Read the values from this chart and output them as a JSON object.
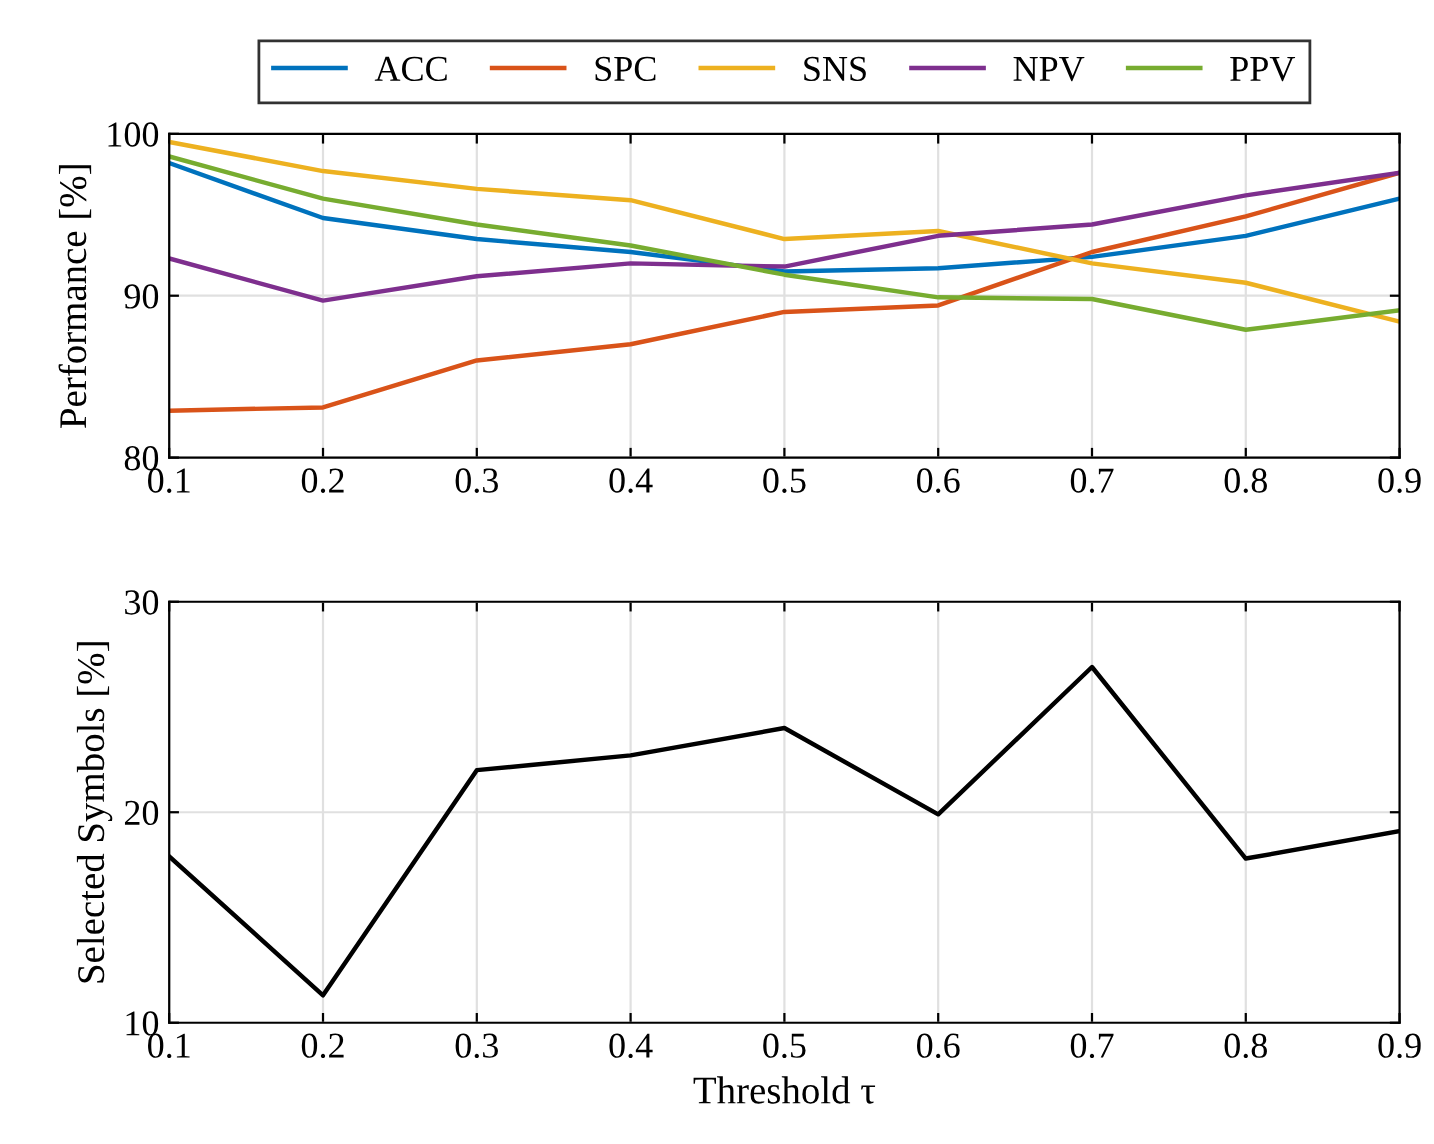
{
  "chart_data": [
    {
      "type": "line",
      "x": [
        0.1,
        0.2,
        0.3,
        0.4,
        0.5,
        0.6,
        0.7,
        0.8,
        0.9
      ],
      "ylabel": "Performance [%]",
      "xlim": [
        0.1,
        0.9
      ],
      "xticks": [
        0.1,
        0.2,
        0.3,
        0.4,
        0.5,
        0.6,
        0.7,
        0.8,
        0.9
      ],
      "ylim": [
        80,
        100
      ],
      "yticks": [
        80,
        90,
        100
      ],
      "grid": true,
      "legend": "top",
      "series": [
        {
          "name": "ACC",
          "color": "#0072bd",
          "values": [
            98.2,
            94.8,
            93.5,
            92.7,
            91.5,
            91.7,
            92.4,
            93.7,
            96.0
          ]
        },
        {
          "name": "SPC",
          "color": "#d95319",
          "values": [
            82.9,
            83.1,
            86.0,
            87.0,
            89.0,
            89.4,
            92.7,
            94.9,
            97.6
          ]
        },
        {
          "name": "SNS",
          "color": "#edb120",
          "values": [
            99.5,
            97.7,
            96.6,
            95.9,
            93.5,
            94.0,
            92.0,
            90.8,
            88.4
          ]
        },
        {
          "name": "NPV",
          "color": "#7e2f8e",
          "values": [
            92.3,
            89.7,
            91.2,
            92.0,
            91.8,
            93.7,
            94.4,
            96.2,
            97.6
          ]
        },
        {
          "name": "PPV",
          "color": "#77ac30",
          "values": [
            98.6,
            96.0,
            94.4,
            93.1,
            91.3,
            89.9,
            89.8,
            87.9,
            89.1
          ]
        }
      ]
    },
    {
      "type": "line",
      "x": [
        0.1,
        0.2,
        0.3,
        0.4,
        0.5,
        0.6,
        0.7,
        0.8,
        0.9
      ],
      "xlabel": "Threshold τ",
      "ylabel": "Selected Symbols [%]",
      "xlim": [
        0.1,
        0.9
      ],
      "xticks": [
        0.1,
        0.2,
        0.3,
        0.4,
        0.5,
        0.6,
        0.7,
        0.8,
        0.9
      ],
      "ylim": [
        10,
        30
      ],
      "yticks": [
        10,
        20,
        30
      ],
      "grid": true,
      "series": [
        {
          "color": "#000000",
          "values": [
            17.9,
            11.3,
            22.0,
            22.7,
            24.0,
            19.9,
            26.9,
            17.8,
            19.1
          ]
        }
      ]
    }
  ]
}
